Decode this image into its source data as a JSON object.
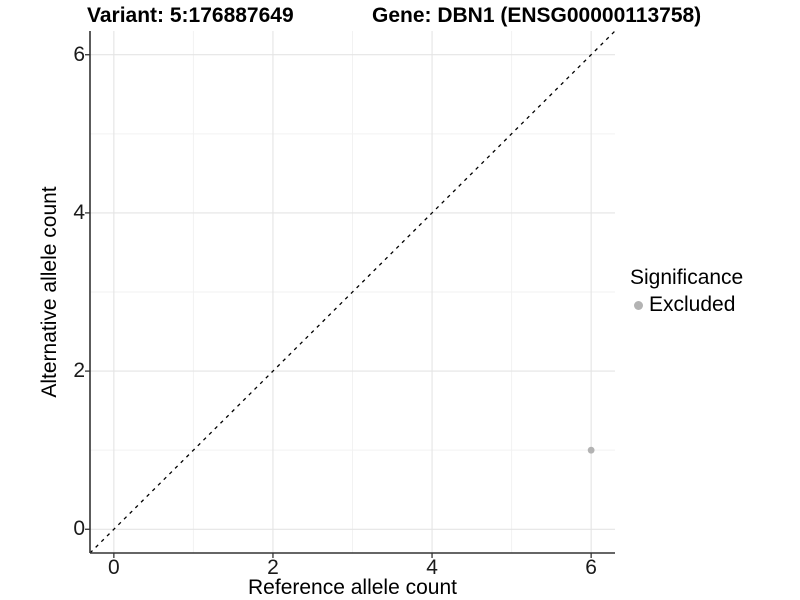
{
  "titles": {
    "left": "Variant: 5:176887649",
    "right": "Gene: DBN1 (ENSG00000113758)"
  },
  "chart_data": {
    "type": "scatter",
    "title": "Variant: 5:176887649   Gene: DBN1 (ENSG00000113758)",
    "xlabel": "Reference allele count",
    "ylabel": "Alternative allele count",
    "xlim": [
      -0.3,
      6.3
    ],
    "ylim": [
      -0.3,
      6.3
    ],
    "x_major_ticks": [
      0,
      2,
      4,
      6
    ],
    "y_major_ticks": [
      0,
      2,
      4,
      6
    ],
    "x_minor_gridlines": [
      1,
      3,
      5
    ],
    "y_minor_gridlines": [
      1,
      3,
      5
    ],
    "grid": true,
    "reference_line": {
      "type": "identity",
      "from": [
        -0.3,
        -0.3
      ],
      "to": [
        6.3,
        6.3
      ],
      "style": "dashed",
      "color": "#000000"
    },
    "series": [
      {
        "name": "Excluded",
        "color": "#b3b3b3",
        "points": [
          [
            6,
            1
          ]
        ]
      }
    ],
    "legend": {
      "position": "right",
      "title": "Significance",
      "entries": [
        {
          "label": "Excluded",
          "color": "#b3b3b3"
        }
      ]
    },
    "colors": {
      "grid_major": "#e4e4e4",
      "grid_minor": "#f2f2f2",
      "axis_line": "#333333",
      "tick_mark": "#333333",
      "tick_text": "#1a1a1a",
      "title_text": "#000000"
    }
  }
}
